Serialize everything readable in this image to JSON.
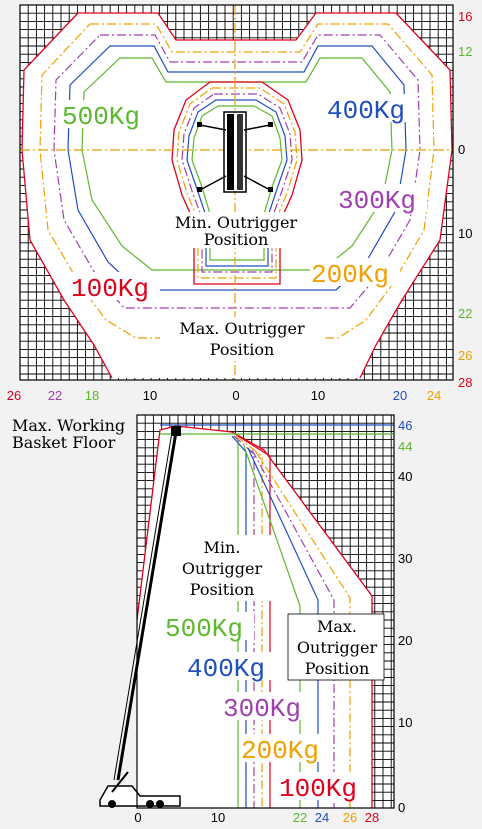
{
  "colors": {
    "red": "#e0001b",
    "green": "#5cb82e",
    "blue": "#1f4fbf",
    "purple": "#a040b0",
    "orange": "#f0a000",
    "black": "#000000"
  },
  "top": {
    "labels": {
      "load500": "500Kg",
      "load400": "400Kg",
      "load300": "300Kg",
      "load200": "200Kg",
      "load100": "100Kg",
      "min_line1": "Min. Outrigger",
      "min_line2": "Position",
      "max_line1": "Max. Outrigger",
      "max_line2": "Position"
    },
    "right_ticks": [
      {
        "text": "16",
        "color": "red"
      },
      {
        "text": "12",
        "color": "green"
      },
      {
        "text": "0",
        "color": "black"
      },
      {
        "text": "10",
        "color": "black"
      },
      {
        "text": "22",
        "color": "green"
      },
      {
        "text": "26",
        "color": "orange"
      },
      {
        "text": "28",
        "color": "red"
      }
    ],
    "bottom_ticks": [
      {
        "text": "26",
        "color": "red"
      },
      {
        "text": "22",
        "color": "purple"
      },
      {
        "text": "18",
        "color": "green"
      },
      {
        "text": "10",
        "color": "black"
      },
      {
        "text": "0",
        "color": "black"
      },
      {
        "text": "10",
        "color": "black"
      },
      {
        "text": "20",
        "color": "blue"
      },
      {
        "text": "24",
        "color": "orange"
      }
    ]
  },
  "bottom": {
    "labels": {
      "max_working_line1": "Max. Working",
      "max_working_line2": "Basket Floor",
      "min_line1": "Min.",
      "min_line2": "Outrigger",
      "min_line3": "Position",
      "max_line1": "Max.",
      "max_line2": "Outrigger",
      "max_line3": "Position",
      "load500": "500Kg",
      "load400": "400Kg",
      "load300": "300Kg",
      "load200": "200Kg",
      "load100": "100Kg"
    },
    "right_ticks": [
      {
        "text": "46",
        "color": "blue"
      },
      {
        "text": "44",
        "color": "green"
      },
      {
        "text": "40",
        "color": "black"
      },
      {
        "text": "30",
        "color": "black"
      },
      {
        "text": "20",
        "color": "black"
      },
      {
        "text": "10",
        "color": "black"
      },
      {
        "text": "0",
        "color": "black"
      }
    ],
    "bottom_ticks": [
      {
        "text": "0",
        "color": "black"
      },
      {
        "text": "10",
        "color": "black"
      },
      {
        "text": "22",
        "color": "green"
      },
      {
        "text": "24",
        "color": "blue"
      },
      {
        "text": "26",
        "color": "orange"
      },
      {
        "text": "28",
        "color": "red"
      }
    ]
  }
}
